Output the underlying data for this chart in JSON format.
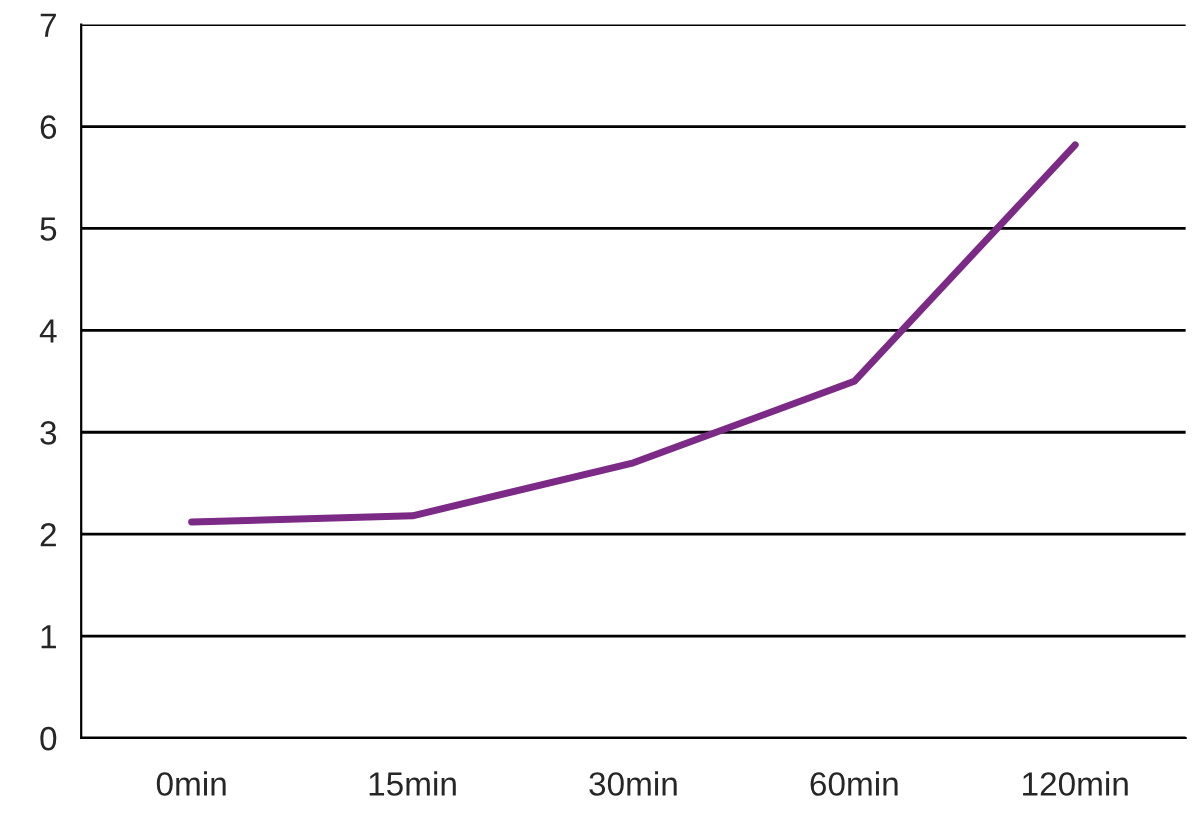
{
  "chart_data": {
    "type": "line",
    "categories": [
      "0min",
      "15min",
      "30min",
      "60min",
      "120min"
    ],
    "series": [
      {
        "color": "#7b2a85",
        "values": [
          2.12,
          2.18,
          2.7,
          3.5,
          5.82
        ]
      }
    ],
    "ylim": [
      0,
      7
    ],
    "yticks": [
      0,
      1,
      2,
      3,
      4,
      5,
      6,
      7
    ],
    "grid": "y",
    "legend": false,
    "marker": "none",
    "line_style": "solid"
  }
}
